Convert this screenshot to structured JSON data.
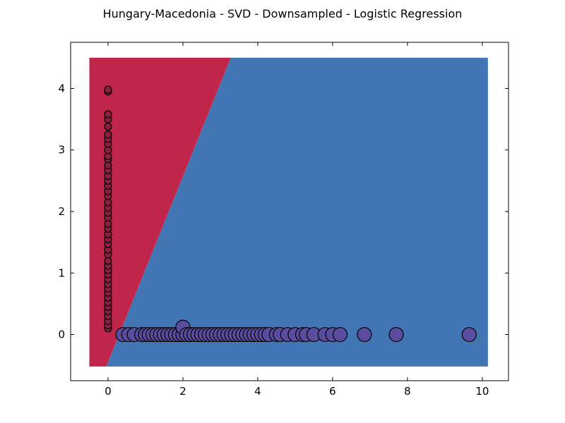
{
  "chart_data": {
    "type": "scatter",
    "title": "Hungary-Macedonia - SVD - Downsampled - Logistic Regression",
    "xlabel": "",
    "ylabel": "",
    "xlim": [
      -1.0,
      10.7
    ],
    "ylim": [
      -0.75,
      4.75
    ],
    "xticks": [
      0,
      2,
      4,
      6,
      8,
      10
    ],
    "yticks": [
      0,
      1,
      2,
      3,
      4
    ],
    "grid": false,
    "decision_region": {
      "x_range": [
        -0.5,
        10.15
      ],
      "y_range": [
        -0.52,
        4.5
      ],
      "boundary": [
        [
          -0.05,
          -0.52
        ],
        [
          3.28,
          4.5
        ]
      ],
      "left_class_color": "#c0264a",
      "right_class_color": "#4275b4"
    },
    "series": [
      {
        "color": "#8b1f3f",
        "x": [
          0,
          0,
          0,
          0,
          0,
          0,
          0,
          0,
          0,
          0,
          0,
          0,
          0,
          0,
          0,
          0,
          0,
          0,
          0,
          0,
          0,
          0,
          0,
          0,
          0,
          0,
          0,
          0,
          0,
          0,
          0,
          0,
          0,
          0,
          0,
          0,
          0,
          0,
          0,
          0,
          0,
          0,
          0,
          0,
          0
        ],
        "y": [
          0.1,
          0.15,
          0.22,
          0.3,
          0.38,
          0.45,
          0.52,
          0.6,
          0.68,
          0.75,
          0.82,
          0.9,
          0.98,
          1.05,
          1.12,
          1.2,
          1.3,
          1.38,
          1.47,
          1.55,
          1.63,
          1.72,
          1.8,
          1.9,
          1.98,
          2.06,
          2.15,
          2.25,
          2.33,
          2.42,
          2.5,
          2.58,
          2.67,
          2.75,
          2.85,
          2.9,
          3.0,
          3.1,
          3.18,
          3.25,
          3.38,
          3.5,
          3.58,
          3.95,
          3.98
        ]
      },
      {
        "color": "#5a4da0",
        "x": [
          0.4,
          0.55,
          0.7,
          0.9,
          1.0,
          1.1,
          1.2,
          1.3,
          1.4,
          1.5,
          1.6,
          1.7,
          1.8,
          1.9,
          2.0,
          2.0,
          2.1,
          2.2,
          2.3,
          2.4,
          2.5,
          2.6,
          2.7,
          2.8,
          2.9,
          3.0,
          3.1,
          3.2,
          3.3,
          3.4,
          3.5,
          3.6,
          3.7,
          3.8,
          3.9,
          4.0,
          4.1,
          4.2,
          4.3,
          4.5,
          4.6,
          4.8,
          5.0,
          5.2,
          5.3,
          5.5,
          5.8,
          6.0,
          6.2,
          6.85,
          7.7,
          9.65
        ],
        "y": [
          0,
          0,
          0,
          0,
          0,
          0,
          0,
          0,
          0,
          0,
          0,
          0,
          0,
          0,
          0,
          0.12,
          0,
          0,
          0,
          0,
          0,
          0,
          0,
          0,
          0,
          0,
          0,
          0,
          0,
          0,
          0,
          0,
          0,
          0,
          0,
          0,
          0,
          0,
          0,
          0,
          0,
          0,
          0,
          0,
          0,
          0,
          0,
          0,
          0,
          0,
          0,
          0
        ]
      }
    ]
  }
}
